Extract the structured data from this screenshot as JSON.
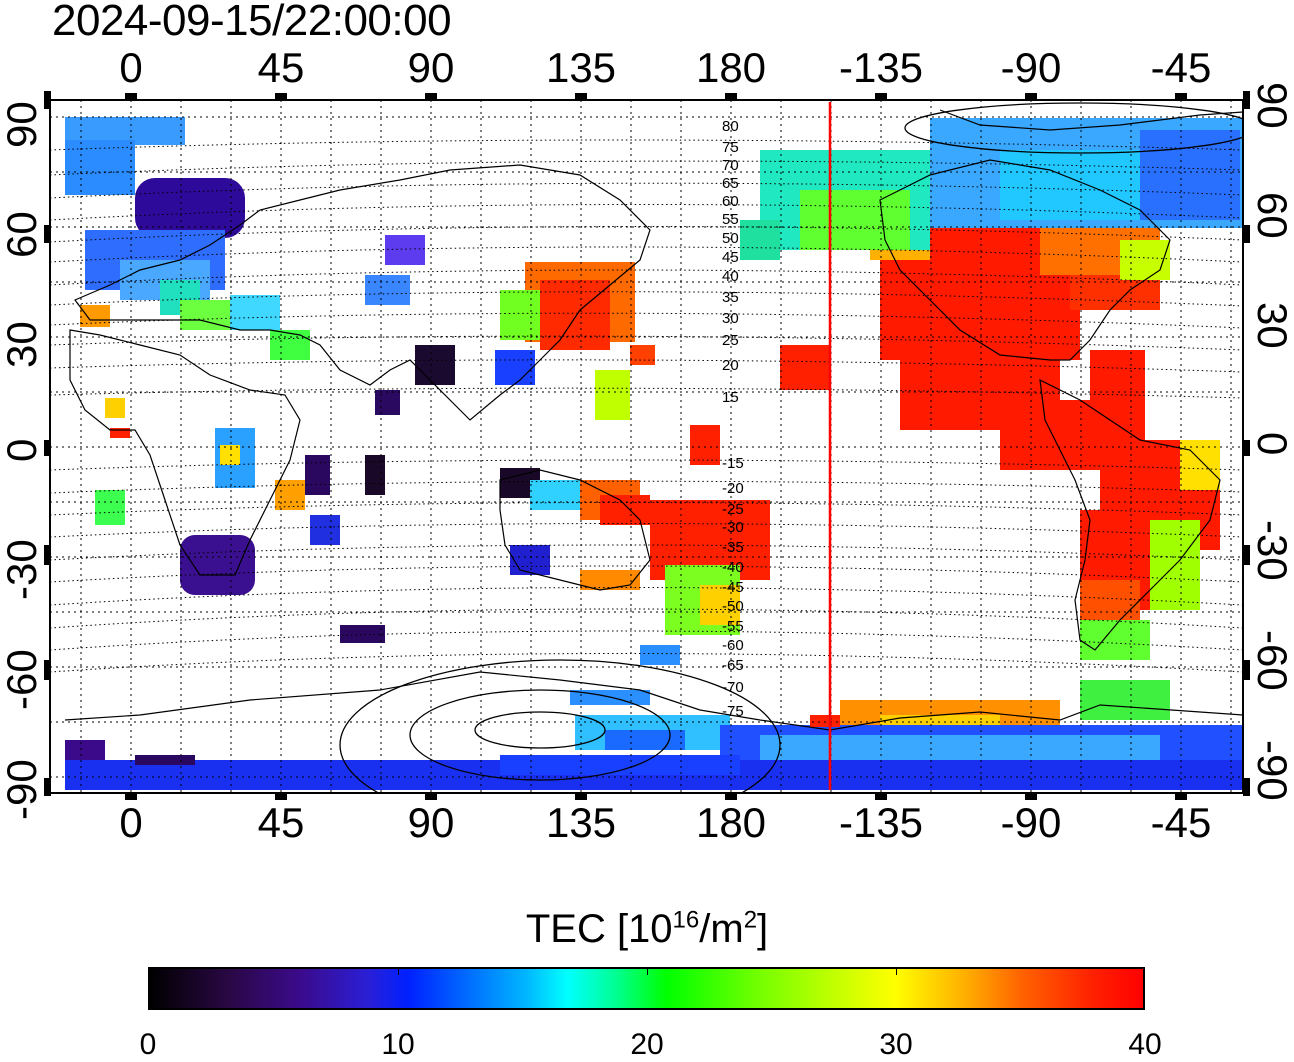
{
  "timestamp": "2024-09-15/22:00:00",
  "top_lon_labels": [
    "0",
    "45",
    "90",
    "135",
    "180",
    "-135",
    "-90",
    "-45"
  ],
  "bottom_lon_labels": [
    "0",
    "45",
    "90",
    "135",
    "180",
    "-135",
    "-90",
    "-45"
  ],
  "left_lat_labels": [
    "90",
    "60",
    "30",
    "0",
    "-30",
    "-60",
    "-90"
  ],
  "right_lat_labels": [
    "90",
    "60",
    "30",
    "0",
    "-30",
    "-60",
    "-90"
  ],
  "contour_labels_north": [
    "80",
    "75",
    "70",
    "65",
    "60",
    "55",
    "50",
    "45",
    "40",
    "35",
    "30",
    "25",
    "20",
    "15"
  ],
  "contour_labels_south": [
    "-15",
    "-20",
    "-25",
    "-30",
    "-35",
    "-40",
    "-45",
    "-50",
    "-55",
    "-60",
    "-65",
    "-70",
    "-75"
  ],
  "colorbar": {
    "title_prefix": "TEC  [10",
    "title_exp1": "16",
    "title_mid": "/m",
    "title_exp2": "2",
    "title_suffix": "]",
    "ticks": [
      "0",
      "10",
      "20",
      "30",
      "40"
    ],
    "min": 0,
    "max": 40,
    "colors": [
      "#000000",
      "#3b0a8a",
      "#0020ff",
      "#00ffff",
      "#00ff00",
      "#ffff00",
      "#ff6000",
      "#ff0000"
    ]
  },
  "map": {
    "lon_range": [
      -22,
      238
    ],
    "lat_range": [
      -93,
      93
    ],
    "grid": "dotted, every 22.5 deg",
    "terminator_color": "#ff0000",
    "terminator_lon": 210
  }
}
